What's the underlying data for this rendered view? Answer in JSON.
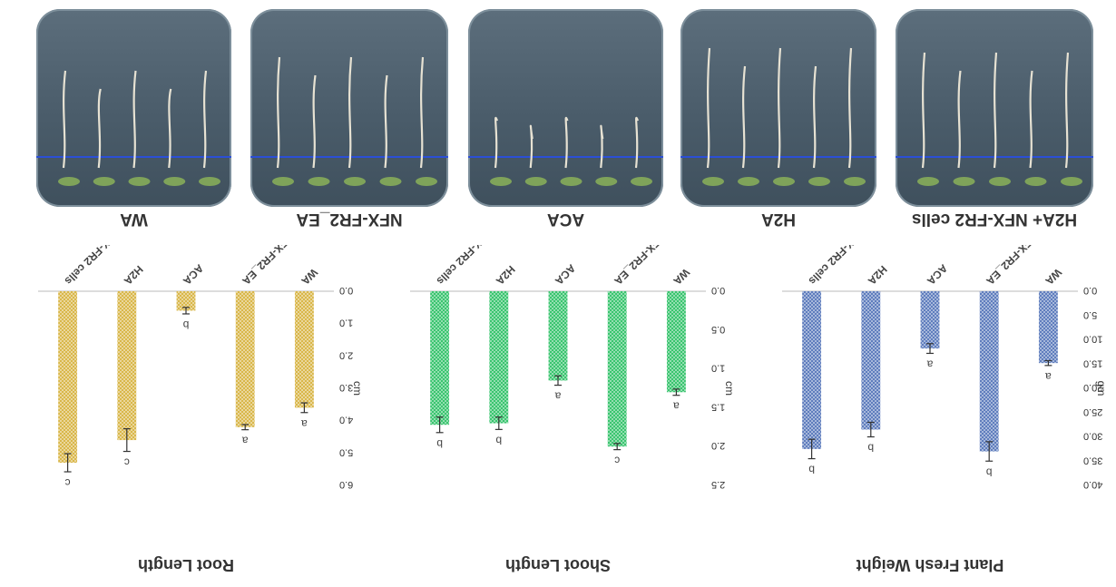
{
  "photos": [
    {
      "label": "WA"
    },
    {
      "label": "NFX-FR2_EA"
    },
    {
      "label": "ACA"
    },
    {
      "label": "H2A"
    },
    {
      "label": "H2A+ NFX-FR2 cells"
    }
  ],
  "colors": {
    "root": "#d9b74a",
    "shoot": "#3ac46f",
    "weight": "#5f7dbd",
    "error": "#333333"
  },
  "chart_data": [
    {
      "type": "bar",
      "title": "Root Length",
      "ylabel": "cm",
      "categories": [
        "WA",
        "NFX-FR2_EA",
        "ACA",
        "H2A",
        "H2A+NFX-FR2 cells"
      ],
      "values": [
        3.6,
        4.2,
        0.6,
        4.6,
        5.3
      ],
      "errors": [
        0.15,
        0.08,
        0.1,
        0.35,
        0.28
      ],
      "letters": [
        "a",
        "a",
        "b",
        "c",
        "c"
      ],
      "ylim": [
        0,
        6
      ],
      "yticks": [
        "0.0",
        "1.0",
        "2.0",
        "3.0",
        "4.0",
        "5.0",
        "6.0"
      ],
      "grid": false,
      "orientation": "rotated 180 degrees"
    },
    {
      "type": "bar",
      "title": "Shoot Length",
      "ylabel": "cm",
      "categories": [
        "WA",
        "NFX-FR2_EA",
        "ACA",
        "H2A",
        "H2A+NFX-FR2 cells"
      ],
      "values": [
        1.3,
        2.0,
        1.15,
        1.7,
        1.72
      ],
      "errors": [
        0.04,
        0.04,
        0.06,
        0.08,
        0.1
      ],
      "letters": [
        "a",
        "c",
        "a",
        "b",
        "b"
      ],
      "ylim": [
        0,
        2.5
      ],
      "yticks": [
        "0.0",
        "0.5",
        "1.0",
        "1.5",
        "2.0",
        "2.5"
      ],
      "grid": false,
      "orientation": "rotated 180 degrees"
    },
    {
      "type": "bar",
      "title": "Plant Fresh Weight",
      "ylabel": "gm",
      "categories": [
        "WA",
        "NFX-FR2_EA",
        "ACA",
        "H2A",
        "H2A+NFX-FR2 cells"
      ],
      "values": [
        14.8,
        33.0,
        11.8,
        28.5,
        32.5
      ],
      "errors": [
        0.5,
        2.0,
        1.0,
        1.5,
        2.0
      ],
      "letters": [
        "a",
        "b",
        "a",
        "b",
        "b"
      ],
      "ylim": [
        0,
        40
      ],
      "yticks": [
        "0.0",
        "5.0",
        "10.0",
        "15.0",
        "20.0",
        "25.0",
        "30.0",
        "35.0",
        "40.0"
      ],
      "grid": false,
      "orientation": "rotated 180 degrees"
    }
  ]
}
